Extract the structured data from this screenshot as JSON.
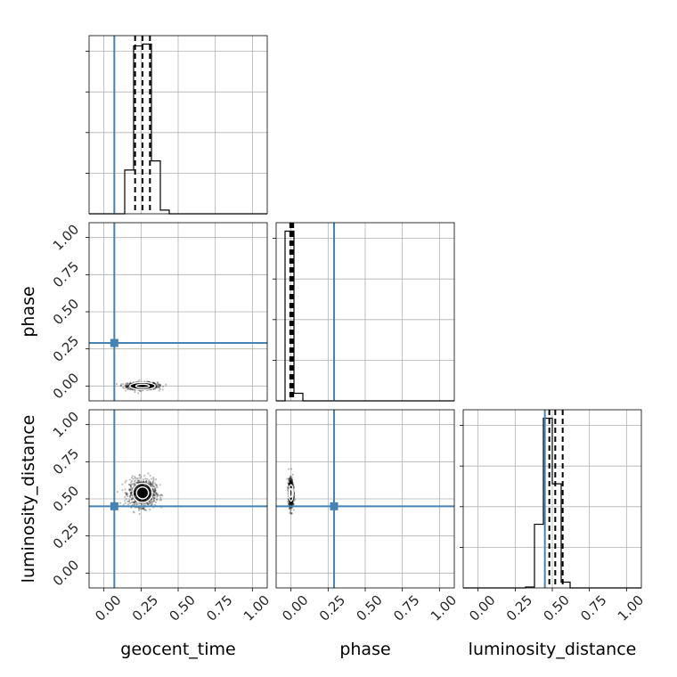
{
  "chart_data": {
    "type": "corner",
    "parameters": [
      "geocent_time",
      "phase",
      "luminosity_distance"
    ],
    "axis_range": [
      -0.1,
      1.1
    ],
    "tick_values": [
      0.0,
      0.25,
      0.5,
      0.75,
      1.0
    ],
    "tick_labels": [
      "0.00",
      "0.25",
      "0.50",
      "0.75",
      "1.00"
    ],
    "truths": {
      "geocent_time": 0.07,
      "phase": 0.29,
      "luminosity_distance": 0.45
    },
    "quantiles": {
      "geocent_time": [
        0.21,
        0.26,
        0.31
      ],
      "phase": [
        -0.005,
        0.005,
        0.015
      ],
      "luminosity_distance": [
        0.48,
        0.52,
        0.57
      ]
    },
    "histograms": {
      "geocent_time": {
        "edges": [
          -0.1,
          -0.04,
          0.02,
          0.08,
          0.14,
          0.2,
          0.26,
          0.32,
          0.38,
          0.44,
          0.5,
          0.56,
          0.62,
          0.68,
          0.74,
          0.8,
          0.86,
          0.92,
          0.98,
          1.04,
          1.1
        ],
        "counts": [
          0,
          0,
          0,
          0,
          0.24,
          0.92,
          0.93,
          0.29,
          0.02,
          0,
          0,
          0,
          0,
          0,
          0,
          0,
          0,
          0,
          0,
          0
        ]
      },
      "phase": {
        "edges": [
          -0.1,
          -0.04,
          0.02,
          0.08,
          0.14,
          0.2,
          0.26,
          0.32,
          0.38,
          0.44,
          0.5,
          0.56,
          0.62,
          0.68,
          0.74,
          0.8,
          0.86,
          0.92,
          0.98,
          1.04,
          1.1
        ],
        "counts": [
          0,
          0.9,
          0.04,
          0,
          0,
          0,
          0,
          0,
          0,
          0,
          0,
          0,
          0,
          0,
          0,
          0,
          0,
          0,
          0,
          0
        ]
      },
      "luminosity_distance": {
        "edges": [
          -0.1,
          -0.04,
          0.02,
          0.08,
          0.14,
          0.2,
          0.26,
          0.32,
          0.38,
          0.44,
          0.5,
          0.56,
          0.62,
          0.68,
          0.74,
          0.8,
          0.86,
          0.92,
          0.98,
          1.04,
          1.1
        ],
        "counts": [
          0,
          0,
          0,
          0,
          0,
          0,
          0,
          0.005,
          0.33,
          0.88,
          0.54,
          0.03,
          0,
          0,
          0,
          0,
          0,
          0,
          0,
          0
        ]
      }
    },
    "scatter": [
      {
        "x": "geocent_time",
        "y": "phase",
        "center": [
          0.26,
          0.0
        ],
        "spread": [
          0.05,
          0.012
        ],
        "contour_radii": [
          [
            0.045,
            0.012
          ],
          [
            0.085,
            0.024
          ]
        ]
      },
      {
        "x": "geocent_time",
        "y": "luminosity_distance",
        "center": [
          0.26,
          0.54
        ],
        "spread": [
          0.045,
          0.045
        ],
        "contour_radii": [
          [
            0.04,
            0.04
          ],
          [
            0.065,
            0.065
          ]
        ]
      },
      {
        "x": "phase",
        "y": "luminosity_distance",
        "center": [
          0.0,
          0.54
        ],
        "spread": [
          0.008,
          0.045
        ],
        "contour_radii": [
          [
            0.008,
            0.03
          ],
          [
            0.015,
            0.055
          ]
        ]
      }
    ],
    "title": "",
    "grid": true
  }
}
